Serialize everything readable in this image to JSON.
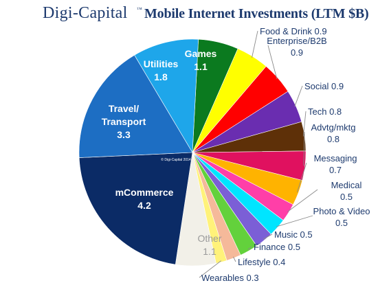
{
  "header": {
    "brand": "Digi-Capital",
    "trademark": "™",
    "title": "Mobile Internet Investments (LTM $B)"
  },
  "chart_data": {
    "type": "pie",
    "title": "Mobile Internet Investments (LTM $B)",
    "watermark": "© Digi-Capital 2014",
    "start_category": "Games",
    "direction": "clockwise",
    "slices": [
      {
        "label": "Games",
        "value": 1.1,
        "color": "#0b7a1f",
        "label_style": "inside-light"
      },
      {
        "label": "Food & Drink",
        "value": 0.9,
        "color": "#ffff00",
        "label_style": "outside"
      },
      {
        "label": "Enterprise/B2B",
        "value": 0.9,
        "color": "#ff0000",
        "label_style": "outside"
      },
      {
        "label": "Social",
        "value": 0.9,
        "color": "#6a2db0",
        "label_style": "outside"
      },
      {
        "label": "Tech",
        "value": 0.8,
        "color": "#5e3008",
        "label_style": "outside"
      },
      {
        "label": "Advtg/mktg",
        "value": 0.8,
        "color": "#e0115f",
        "label_style": "outside"
      },
      {
        "label": "Messaging",
        "value": 0.7,
        "color": "#ffb300",
        "label_style": "outside"
      },
      {
        "label": "Medical",
        "value": 0.5,
        "color": "#ff3fa8",
        "label_style": "outside"
      },
      {
        "label": "Photo & Video",
        "value": 0.5,
        "color": "#00e5ff",
        "label_style": "outside"
      },
      {
        "label": "Music",
        "value": 0.5,
        "color": "#7b5fd6",
        "label_style": "outside"
      },
      {
        "label": "Finance",
        "value": 0.5,
        "color": "#63d13c",
        "label_style": "outside"
      },
      {
        "label": "Lifestyle",
        "value": 0.4,
        "color": "#f5b99a",
        "label_style": "outside"
      },
      {
        "label": "Wearables",
        "value": 0.3,
        "color": "#fff27a",
        "label_style": "outside"
      },
      {
        "label": "Other",
        "value": 1.1,
        "color": "#f2f0e8",
        "label_style": "inside-dark"
      },
      {
        "label": "mCommerce",
        "value": 4.2,
        "color": "#0b2b66",
        "label_style": "inside-light"
      },
      {
        "label": "Travel/ Transport",
        "value": 3.3,
        "color": "#1d6ec3",
        "label_style": "inside-light"
      },
      {
        "label": "Utilities",
        "value": 1.8,
        "color": "#1ea6ea",
        "label_style": "inside-light"
      }
    ]
  }
}
